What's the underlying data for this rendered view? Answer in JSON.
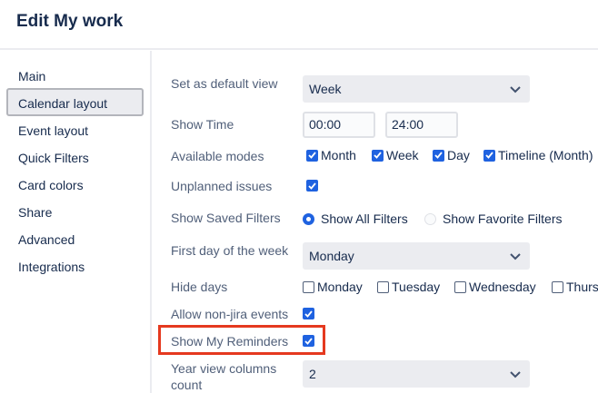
{
  "header": {
    "title": "Edit My work"
  },
  "sidebar": {
    "items": [
      {
        "label": "Main"
      },
      {
        "label": "Calendar layout",
        "selected": true
      },
      {
        "label": "Event layout"
      },
      {
        "label": "Quick Filters"
      },
      {
        "label": "Card colors"
      },
      {
        "label": "Share"
      },
      {
        "label": "Advanced"
      },
      {
        "label": "Integrations"
      }
    ]
  },
  "form": {
    "default_view": {
      "label": "Set as default view",
      "value": "Week"
    },
    "show_time": {
      "label": "Show Time",
      "start": "00:00",
      "end": "24:00"
    },
    "modes": {
      "label": "Available modes",
      "options": [
        {
          "label": "Month",
          "checked": true
        },
        {
          "label": "Week",
          "checked": true
        },
        {
          "label": "Day",
          "checked": true
        },
        {
          "label": "Timeline (Month)",
          "checked": true
        }
      ]
    },
    "unplanned": {
      "label": "Unplanned issues",
      "checked": true
    },
    "saved_filters": {
      "label": "Show Saved Filters",
      "options": [
        {
          "label": "Show All Filters",
          "selected": true
        },
        {
          "label": "Show Favorite Filters",
          "selected": false
        }
      ]
    },
    "first_day": {
      "label": "First day of the week",
      "value": "Monday"
    },
    "hide_days": {
      "label": "Hide days",
      "options": [
        {
          "label": "Monday",
          "checked": false
        },
        {
          "label": "Tuesday",
          "checked": false
        },
        {
          "label": "Wednesday",
          "checked": false
        },
        {
          "label": "Thurs",
          "checked": false
        }
      ]
    },
    "non_jira": {
      "label": "Allow non-jira events",
      "checked": true
    },
    "reminders": {
      "label": "Show My Reminders",
      "checked": true
    },
    "year_columns": {
      "label_line1": "Year view columns",
      "label_line2": "count",
      "value": "2"
    }
  },
  "colors": {
    "accent": "#1f62e0",
    "highlight": "#e5391f"
  }
}
